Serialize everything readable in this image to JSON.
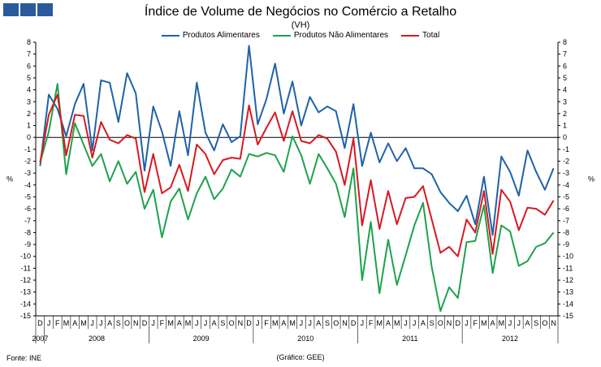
{
  "header": {
    "logo_colors": [
      "#2a5a9c",
      "#2a5a9c",
      "#2a5a9c",
      "#2a5a9c"
    ]
  },
  "chart_data": {
    "type": "line",
    "title": "Índice de Volume de Negócios no Comércio a Retalho",
    "subtitle": "(VH)",
    "ylabel_left": "%",
    "ylabel_right": "%",
    "ylim": [
      -15,
      8
    ],
    "y_ticks": [
      8,
      7,
      6,
      5,
      4,
      3,
      2,
      1,
      0,
      -1,
      -2,
      -3,
      -4,
      -5,
      -6,
      -7,
      -8,
      -9,
      -10,
      -11,
      -12,
      -13,
      -14,
      -15
    ],
    "grid": false,
    "legend_position": "top",
    "month_labels": [
      "D",
      "J",
      "F",
      "M",
      "A",
      "M",
      "J",
      "J",
      "A",
      "S",
      "O",
      "N",
      "D",
      "J",
      "F",
      "M",
      "A",
      "M",
      "J",
      "J",
      "A",
      "S",
      "O",
      "N",
      "D",
      "J",
      "F",
      "M",
      "A",
      "M",
      "J",
      "J",
      "A",
      "S",
      "O",
      "N",
      "D",
      "J",
      "F",
      "M",
      "A",
      "M",
      "J",
      "J",
      "A",
      "S",
      "O",
      "N",
      "D",
      "J",
      "F",
      "M",
      "A",
      "M",
      "J",
      "J",
      "A",
      "S",
      "O",
      "N"
    ],
    "years": [
      {
        "label": "2007",
        "start": 0,
        "end": 0
      },
      {
        "label": "2008",
        "start": 1,
        "end": 12
      },
      {
        "label": "2009",
        "start": 13,
        "end": 24
      },
      {
        "label": "2010",
        "start": 25,
        "end": 36
      },
      {
        "label": "2011",
        "start": 37,
        "end": 48
      },
      {
        "label": "2012",
        "start": 49,
        "end": 59
      }
    ],
    "series": [
      {
        "name": "Produtos Alimentares",
        "color": "#1f62a8",
        "values": [
          -2.4,
          3.6,
          2.4,
          0.1,
          2.8,
          4.5,
          -1.1,
          4.8,
          4.6,
          1.3,
          5.4,
          3.7,
          -2.8,
          2.6,
          0.5,
          -2.4,
          2.2,
          -1.5,
          4.6,
          0.4,
          -1.1,
          1.1,
          -0.4,
          0.1,
          7.7,
          1.1,
          3.2,
          6.2,
          2.0,
          4.7,
          1.0,
          3.4,
          2.1,
          2.6,
          2.2,
          -0.9,
          2.8,
          -2.4,
          0.4,
          -2.1,
          -0.5,
          -2.0,
          -0.9,
          -2.6,
          -2.6,
          -3.1,
          -4.6,
          -5.5,
          -6.2,
          -4.9,
          -7.3,
          -3.3,
          -8.2,
          -1.6,
          -2.9,
          -4.9,
          -1.1,
          -2.9,
          -4.4,
          -2.6
        ]
      },
      {
        "name": "Produtos Não Alimentares",
        "color": "#1ea24c",
        "values": [
          -2.1,
          0.5,
          4.5,
          -3.1,
          1.2,
          -0.6,
          -2.4,
          -1.4,
          -3.7,
          -2.0,
          -3.9,
          -2.9,
          -6.0,
          -4.4,
          -8.4,
          -5.4,
          -4.3,
          -6.9,
          -4.7,
          -3.3,
          -5.2,
          -4.3,
          -2.7,
          -3.3,
          -1.4,
          -1.6,
          -1.3,
          -1.5,
          -2.9,
          0.1,
          -1.5,
          -3.9,
          -1.4,
          -2.6,
          -3.9,
          -6.7,
          -2.6,
          -12.0,
          -7.1,
          -13.1,
          -8.6,
          -12.4,
          -9.9,
          -7.4,
          -5.5,
          -10.9,
          -14.6,
          -12.6,
          -13.5,
          -8.8,
          -8.7,
          -5.7,
          -11.4,
          -7.4,
          -7.9,
          -10.8,
          -10.4,
          -9.2,
          -8.9,
          -8.0
        ]
      },
      {
        "name": "Total",
        "color": "#d71921",
        "values": [
          -2.1,
          1.9,
          3.6,
          -1.5,
          1.9,
          1.8,
          -1.7,
          1.3,
          -0.2,
          -0.5,
          0.2,
          -0.1,
          -4.6,
          -1.4,
          -4.7,
          -4.2,
          -2.3,
          -4.5,
          -0.6,
          -1.4,
          -3.1,
          -1.9,
          -1.7,
          -1.8,
          2.7,
          -0.6,
          0.8,
          2.1,
          -0.3,
          2.2,
          -0.3,
          -0.5,
          0.2,
          -0.1,
          -1.2,
          -4.0,
          -0.1,
          -7.4,
          -3.6,
          -7.7,
          -4.5,
          -7.3,
          -5.1,
          -5.0,
          -4.1,
          -6.9,
          -9.7,
          -9.2,
          -10.0,
          -6.9,
          -8.0,
          -4.5,
          -9.8,
          -4.4,
          -5.4,
          -7.8,
          -5.9,
          -6.0,
          -6.5,
          -5.3
        ]
      }
    ]
  },
  "footer": {
    "source": "Fonte: INE",
    "credit": "(Gráfico: GEE)"
  }
}
